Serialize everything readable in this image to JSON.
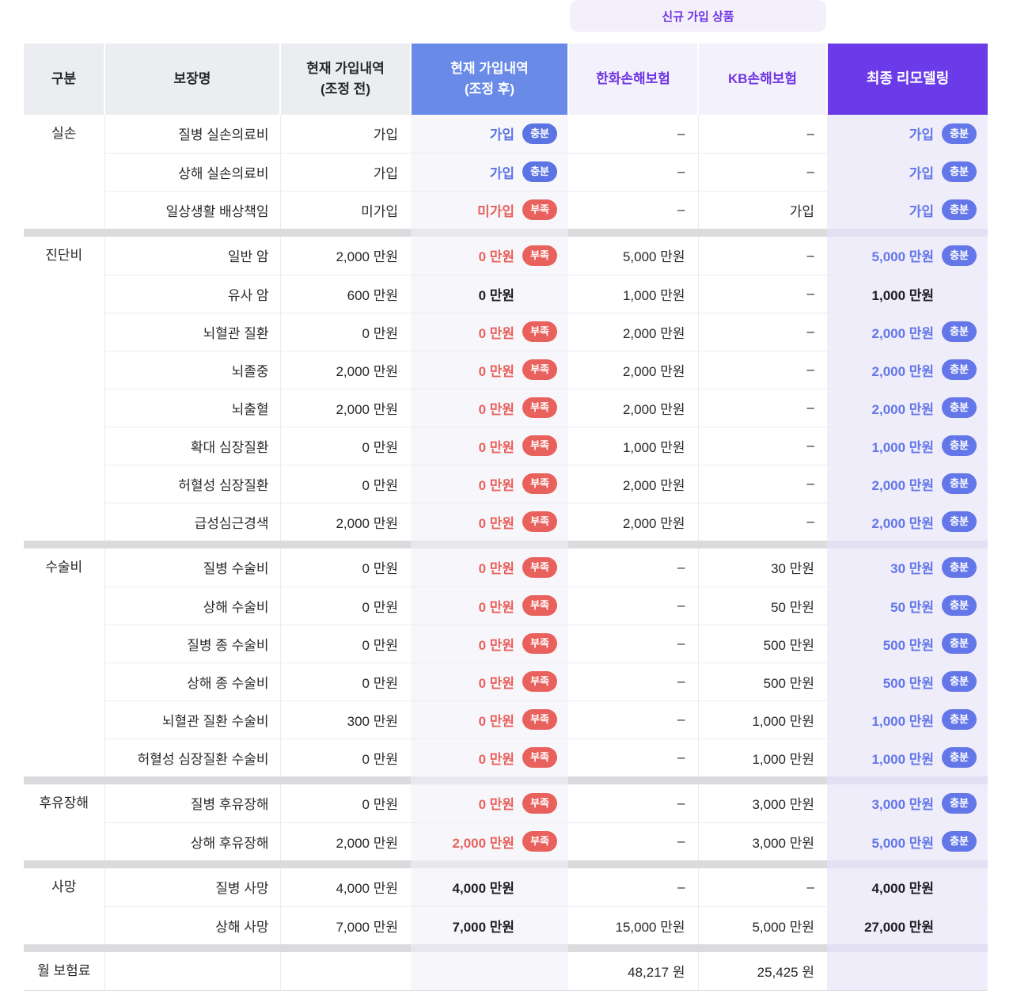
{
  "banner": {
    "label": "신규 가입 상품"
  },
  "table": {
    "columns": [
      {
        "key": "category",
        "label": "구분"
      },
      {
        "key": "name",
        "label": "보장명"
      },
      {
        "key": "before",
        "label": "현재 가입내역\n(조정 전)"
      },
      {
        "key": "after",
        "label": "현재 가입내역\n(조정 후)"
      },
      {
        "key": "hanwha",
        "label": "한화손해보험"
      },
      {
        "key": "kb",
        "label": "KB손해보험"
      },
      {
        "key": "final",
        "label": "최종 리모델링"
      }
    ],
    "badge_labels": {
      "sufficient": "충분",
      "insufficient": "부족"
    },
    "groups": [
      {
        "category": "실손",
        "rows": [
          {
            "name": "질병 실손의료비",
            "before": "가입",
            "after": {
              "text": "가입",
              "state": "ok",
              "badge": "충분"
            },
            "hanwha": "–",
            "kb": "–",
            "final": {
              "text": "가입",
              "state": "ok",
              "badge": "충분"
            }
          },
          {
            "name": "상해 실손의료비",
            "before": "가입",
            "after": {
              "text": "가입",
              "state": "ok",
              "badge": "충분"
            },
            "hanwha": "–",
            "kb": "–",
            "final": {
              "text": "가입",
              "state": "ok",
              "badge": "충분"
            }
          },
          {
            "name": "일상생활 배상책임",
            "before": "미가입",
            "after": {
              "text": "미가입",
              "state": "bad",
              "badge": "부족"
            },
            "hanwha": "–",
            "kb": "가입",
            "final": {
              "text": "가입",
              "state": "ok",
              "badge": "충분"
            }
          }
        ]
      },
      {
        "category": "진단비",
        "rows": [
          {
            "name": "일반 암",
            "before": "2,000 만원",
            "after": {
              "text": "0 만원",
              "state": "bad",
              "badge": "부족"
            },
            "hanwha": "5,000 만원",
            "kb": "–",
            "final": {
              "text": "5,000 만원",
              "state": "ok",
              "badge": "충분"
            }
          },
          {
            "name": "유사 암",
            "before": "600 만원",
            "after": {
              "text": "0 만원",
              "state": "plain",
              "badge": null
            },
            "hanwha": "1,000 만원",
            "kb": "–",
            "final": {
              "text": "1,000 만원",
              "state": "plain",
              "badge": null
            }
          },
          {
            "name": "뇌혈관 질환",
            "before": "0 만원",
            "after": {
              "text": "0 만원",
              "state": "bad",
              "badge": "부족"
            },
            "hanwha": "2,000 만원",
            "kb": "–",
            "final": {
              "text": "2,000 만원",
              "state": "ok",
              "badge": "충분"
            }
          },
          {
            "name": "뇌졸중",
            "before": "2,000 만원",
            "after": {
              "text": "0 만원",
              "state": "bad",
              "badge": "부족"
            },
            "hanwha": "2,000 만원",
            "kb": "–",
            "final": {
              "text": "2,000 만원",
              "state": "ok",
              "badge": "충분"
            }
          },
          {
            "name": "뇌출혈",
            "before": "2,000 만원",
            "after": {
              "text": "0 만원",
              "state": "bad",
              "badge": "부족"
            },
            "hanwha": "2,000 만원",
            "kb": "–",
            "final": {
              "text": "2,000 만원",
              "state": "ok",
              "badge": "충분"
            }
          },
          {
            "name": "확대 심장질환",
            "before": "0 만원",
            "after": {
              "text": "0 만원",
              "state": "bad",
              "badge": "부족"
            },
            "hanwha": "1,000 만원",
            "kb": "–",
            "final": {
              "text": "1,000 만원",
              "state": "ok",
              "badge": "충분"
            }
          },
          {
            "name": "허혈성 심장질환",
            "before": "0 만원",
            "after": {
              "text": "0 만원",
              "state": "bad",
              "badge": "부족"
            },
            "hanwha": "2,000 만원",
            "kb": "–",
            "final": {
              "text": "2,000 만원",
              "state": "ok",
              "badge": "충분"
            }
          },
          {
            "name": "급성심근경색",
            "before": "2,000 만원",
            "after": {
              "text": "0 만원",
              "state": "bad",
              "badge": "부족"
            },
            "hanwha": "2,000 만원",
            "kb": "–",
            "final": {
              "text": "2,000 만원",
              "state": "ok",
              "badge": "충분"
            }
          }
        ]
      },
      {
        "category": "수술비",
        "rows": [
          {
            "name": "질병 수술비",
            "before": "0 만원",
            "after": {
              "text": "0 만원",
              "state": "bad",
              "badge": "부족"
            },
            "hanwha": "–",
            "kb": "30 만원",
            "final": {
              "text": "30 만원",
              "state": "ok",
              "badge": "충분"
            }
          },
          {
            "name": "상해 수술비",
            "before": "0 만원",
            "after": {
              "text": "0 만원",
              "state": "bad",
              "badge": "부족"
            },
            "hanwha": "–",
            "kb": "50 만원",
            "final": {
              "text": "50 만원",
              "state": "ok",
              "badge": "충분"
            }
          },
          {
            "name": "질병 종 수술비",
            "before": "0 만원",
            "after": {
              "text": "0 만원",
              "state": "bad",
              "badge": "부족"
            },
            "hanwha": "–",
            "kb": "500 만원",
            "final": {
              "text": "500 만원",
              "state": "ok",
              "badge": "충분"
            }
          },
          {
            "name": "상해 종 수술비",
            "before": "0 만원",
            "after": {
              "text": "0 만원",
              "state": "bad",
              "badge": "부족"
            },
            "hanwha": "–",
            "kb": "500 만원",
            "final": {
              "text": "500 만원",
              "state": "ok",
              "badge": "충분"
            }
          },
          {
            "name": "뇌혈관 질환 수술비",
            "before": "300 만원",
            "after": {
              "text": "0 만원",
              "state": "bad",
              "badge": "부족"
            },
            "hanwha": "–",
            "kb": "1,000 만원",
            "final": {
              "text": "1,000 만원",
              "state": "ok",
              "badge": "충분"
            }
          },
          {
            "name": "허혈성 심장질환 수술비",
            "before": "0 만원",
            "after": {
              "text": "0 만원",
              "state": "bad",
              "badge": "부족"
            },
            "hanwha": "–",
            "kb": "1,000 만원",
            "final": {
              "text": "1,000 만원",
              "state": "ok",
              "badge": "충분"
            }
          }
        ]
      },
      {
        "category": "후유장해",
        "rows": [
          {
            "name": "질병 후유장해",
            "before": "0 만원",
            "after": {
              "text": "0 만원",
              "state": "bad",
              "badge": "부족"
            },
            "hanwha": "–",
            "kb": "3,000 만원",
            "final": {
              "text": "3,000 만원",
              "state": "ok",
              "badge": "충분"
            }
          },
          {
            "name": "상해 후유장해",
            "before": "2,000 만원",
            "after": {
              "text": "2,000 만원",
              "state": "bad",
              "badge": "부족"
            },
            "hanwha": "–",
            "kb": "3,000 만원",
            "final": {
              "text": "5,000 만원",
              "state": "ok",
              "badge": "충분"
            }
          }
        ]
      },
      {
        "category": "사망",
        "rows": [
          {
            "name": "질병 사망",
            "before": "4,000 만원",
            "after": {
              "text": "4,000 만원",
              "state": "plain",
              "badge": null
            },
            "hanwha": "–",
            "kb": "–",
            "final": {
              "text": "4,000 만원",
              "state": "plain",
              "badge": null
            }
          },
          {
            "name": "상해 사망",
            "before": "7,000 만원",
            "after": {
              "text": "7,000 만원",
              "state": "plain",
              "badge": null
            },
            "hanwha": "15,000 만원",
            "kb": "5,000 만원",
            "final": {
              "text": "27,000 만원",
              "state": "plain",
              "badge": null
            }
          }
        ]
      }
    ],
    "footer": {
      "category": "월 보험료",
      "hanwha": "48,217 원",
      "kb": "25,425 원"
    }
  },
  "colors": {
    "text": "#1e2024",
    "header_gray_bg": "#ecedf0",
    "header_blue": "#6a8ae8",
    "header_lavender_bg": "#f3f1fb",
    "header_purple": "#6b3be9",
    "purple_text": "#7036e4",
    "banner_bg": "#f3f0fc",
    "ok_blue": "#5c73e3",
    "ok_blue_final": "#6477e9",
    "bad_red": "#e9615c",
    "col_after_bg": "#f7f7fb",
    "col_final_bg": "#efedfa",
    "separator": "#dbdbde",
    "separator_after": "#e7e7ed",
    "separator_final": "#e3e0f3"
  }
}
